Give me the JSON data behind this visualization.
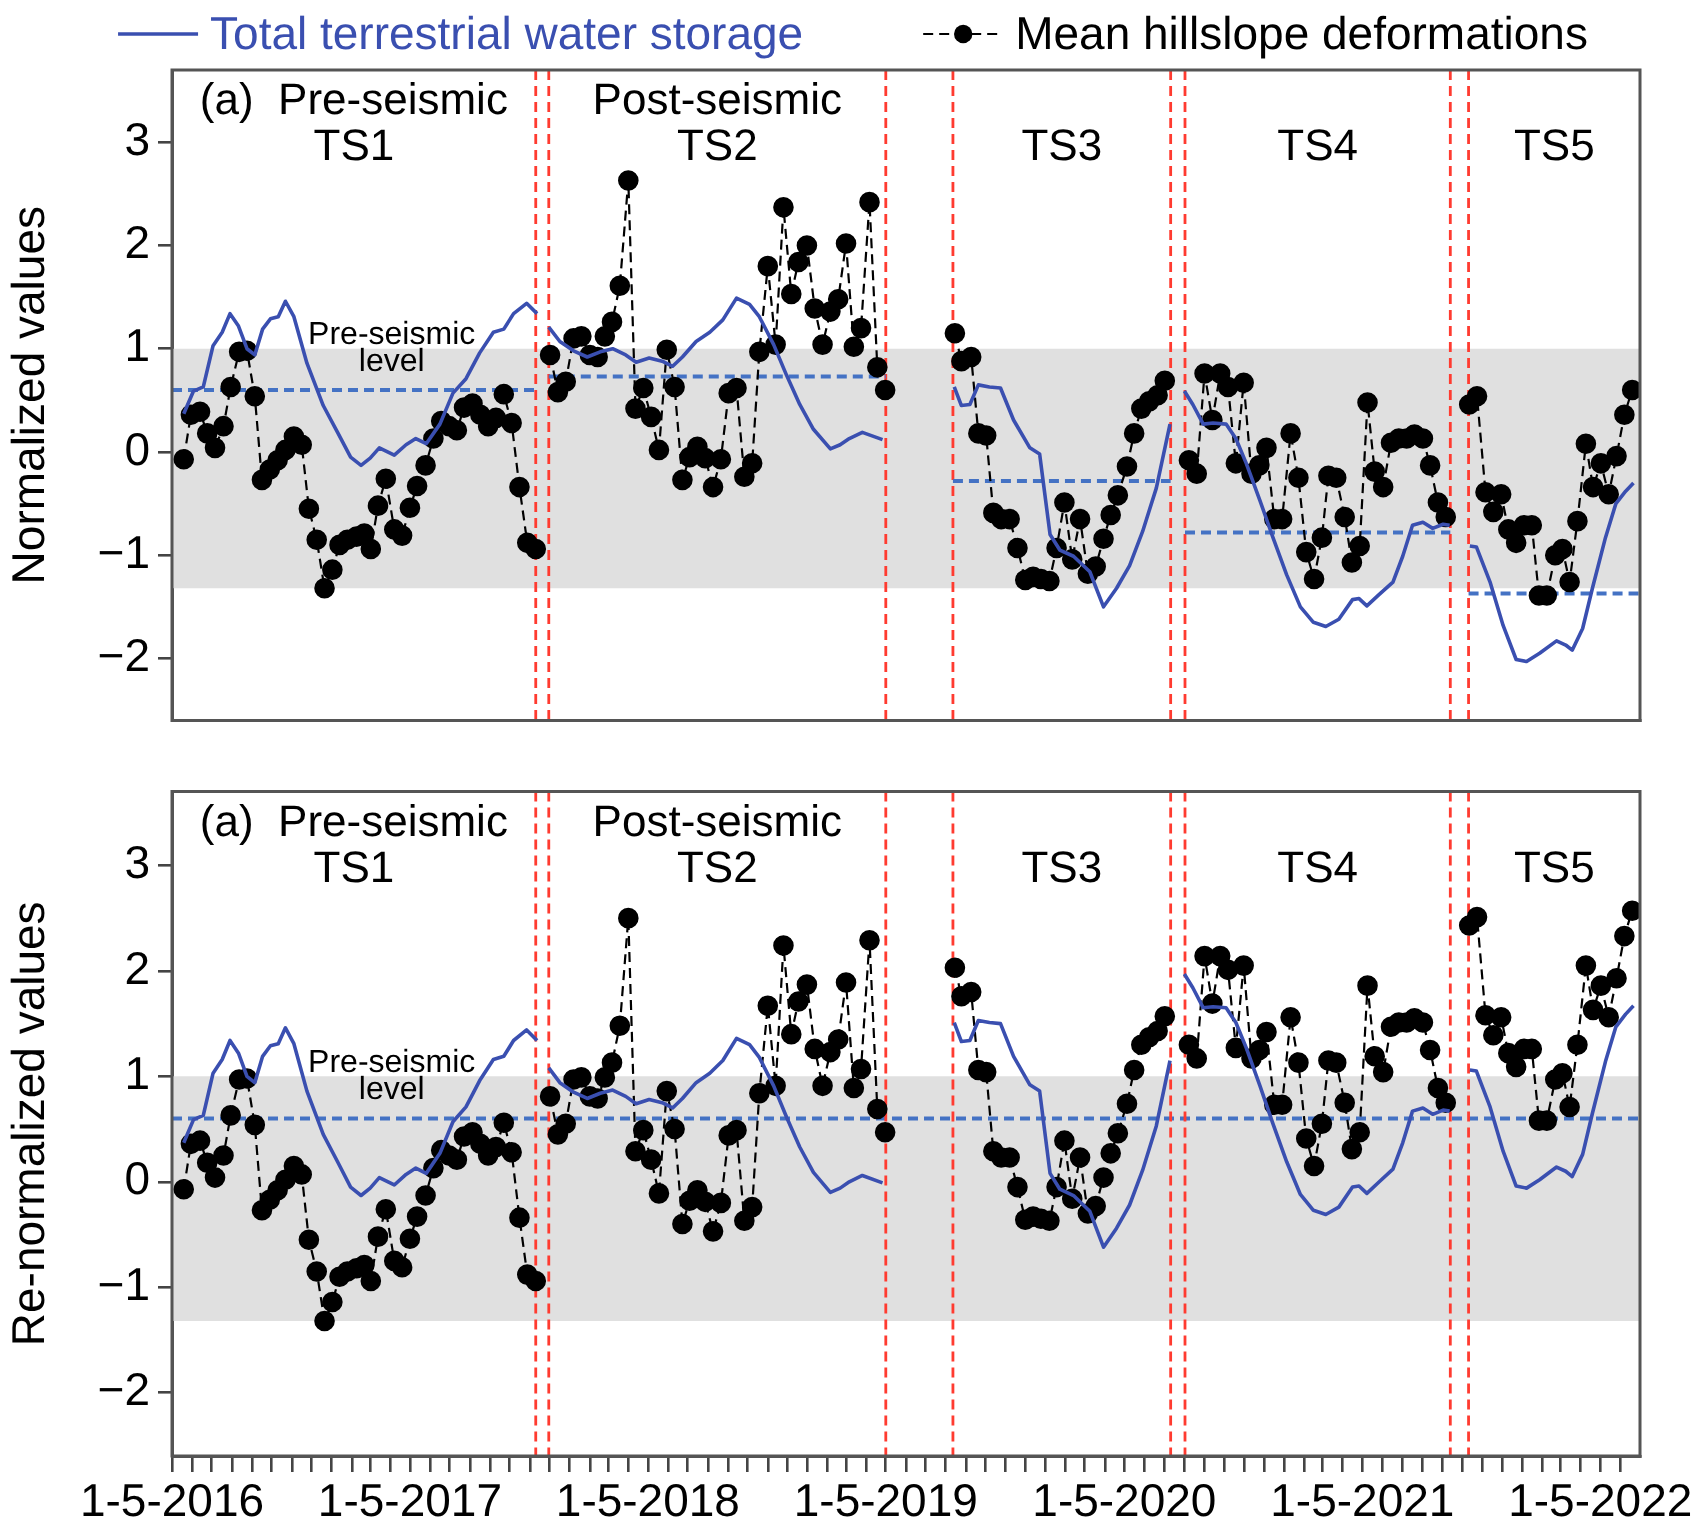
{
  "chart_data": [
    {
      "type": "line",
      "ylabel": "Normalized values",
      "legend": "top",
      "tick_labels": "y",
      "xlim": [
        "2016-05-01",
        "2022-07-01"
      ],
      "ylim": [
        -2.6,
        3.7
      ],
      "yticks": [
        -2,
        -1,
        0,
        1,
        2,
        3
      ],
      "bands": [
        {
          "axis": "y",
          "from": -1.32,
          "to": 1.0,
          "color": "#e0e0e0"
        }
      ],
      "ref_lines": [
        {
          "axis": "x",
          "value": "2017-11-10",
          "color": "#ff3b30",
          "line_style": "dashed"
        },
        {
          "axis": "x",
          "value": "2017-11-30",
          "color": "#ff3b30",
          "line_style": "dashed"
        },
        {
          "axis": "x",
          "value": "2019-05-01",
          "color": "#ff3b30",
          "line_style": "dashed"
        },
        {
          "axis": "x",
          "value": "2019-08-12",
          "color": "#ff3b30",
          "line_style": "dashed"
        },
        {
          "axis": "x",
          "value": "2020-07-11",
          "color": "#ff3b30",
          "line_style": "dashed"
        },
        {
          "axis": "x",
          "value": "2020-08-02",
          "color": "#ff3b30",
          "line_style": "dashed"
        },
        {
          "axis": "x",
          "value": "2021-09-13",
          "color": "#ff3b30",
          "line_style": "dashed"
        },
        {
          "axis": "x",
          "value": "2021-10-11",
          "color": "#ff3b30",
          "line_style": "dashed"
        }
      ],
      "annotations": [
        "(a)  Pre-seismic\nTS1",
        "Post-seismic\nTS2",
        "TS3",
        "TS4",
        "TS5",
        {
          "text": "Pre-seismic\nlevel",
          "x": "2017-04-03",
          "y": 1.0
        }
      ],
      "series": [
        {
          "name": "Total terrestrial water storage",
          "type": "line",
          "color": "#3a4fb0",
          "marker": "none",
          "line_style": "solid",
          "x": [
            "2016-05-19",
            "2016-06-03",
            "2016-06-18",
            "2016-07-03",
            "2016-07-17",
            "2016-07-29",
            "2016-08-11",
            "2016-08-24",
            "2016-09-05",
            "2016-09-17",
            "2016-09-29",
            "2016-10-11",
            "2016-10-22",
            "2016-11-04",
            "2016-11-24",
            "2016-12-19",
            "2017-01-10",
            "2017-01-30",
            "2017-02-15",
            "2017-03-01",
            "2017-03-15",
            "2017-04-07",
            "2017-04-25",
            "2017-05-10",
            "2017-05-26",
            "2017-06-16",
            "2017-07-06",
            "2017-07-26",
            "2017-08-16",
            "2017-09-06",
            "2017-09-22",
            "2017-10-07",
            "2017-10-27",
            "2017-11-12",
            "2017-11-20",
            "2017-11-30",
            "2017-12-17",
            "2018-01-07",
            "2018-01-28",
            "2018-02-17",
            "2018-03-08",
            "2018-03-28",
            "2018-04-13",
            "2018-05-03",
            "2018-05-23",
            "2018-06-08",
            "2018-06-23",
            "2018-07-14",
            "2018-08-04",
            "2018-08-24",
            "2018-09-14",
            "2018-10-04",
            "2018-10-19",
            "2018-11-10",
            "2018-11-30",
            "2018-12-20",
            "2019-01-10",
            "2019-02-05",
            "2019-02-20",
            "2019-03-06",
            "2019-03-26",
            "2019-04-26",
            "2019-06-20",
            "2019-08-14",
            "2019-08-25",
            "2019-09-07",
            "2019-09-20",
            "2019-10-07",
            "2019-10-24",
            "2019-11-13",
            "2019-12-08",
            "2019-12-23",
            "2020-01-08",
            "2020-01-23",
            "2020-02-13",
            "2020-03-09",
            "2020-03-30",
            "2020-04-19",
            "2020-05-09",
            "2020-05-29",
            "2020-06-19",
            "2020-07-10",
            "2020-07-20",
            "2020-08-01",
            "2020-08-14",
            "2020-08-30",
            "2020-09-14",
            "2020-10-04",
            "2020-10-19",
            "2020-11-04",
            "2020-11-25",
            "2020-12-15",
            "2021-01-05",
            "2021-01-26",
            "2021-02-15",
            "2021-03-06",
            "2021-03-26",
            "2021-04-16",
            "2021-04-26",
            "2021-05-08",
            "2021-05-27",
            "2021-06-17",
            "2021-07-02",
            "2021-07-17",
            "2021-08-02",
            "2021-08-17",
            "2021-09-02",
            "2021-09-12",
            "2021-09-25",
            "2021-10-13",
            "2021-10-23",
            "2021-11-13",
            "2021-12-03",
            "2021-12-23",
            "2022-01-08",
            "2022-01-28",
            "2022-02-23",
            "2022-03-09",
            "2022-03-19",
            "2022-04-04",
            "2022-04-19",
            "2022-05-09",
            "2022-05-25",
            "2022-06-09",
            "2022-06-21"
          ],
          "values": [
            0.37,
            0.59,
            0.63,
            1.03,
            1.16,
            1.34,
            1.22,
            1.0,
            0.94,
            1.19,
            1.29,
            1.31,
            1.46,
            1.31,
            0.86,
            0.45,
            0.19,
            -0.05,
            -0.13,
            -0.06,
            0.04,
            -0.03,
            0.07,
            0.13,
            0.08,
            0.27,
            0.57,
            0.71,
            0.96,
            1.16,
            1.19,
            1.34,
            1.44,
            1.34,
            null,
            1.21,
            1.07,
            0.98,
            0.92,
            0.97,
            1.0,
            0.94,
            0.87,
            0.91,
            0.88,
            0.83,
            0.92,
            1.07,
            1.16,
            1.28,
            1.49,
            1.43,
            1.31,
            1.04,
            0.74,
            0.46,
            0.22,
            0.03,
            0.07,
            0.13,
            0.19,
            0.12,
            null,
            0.63,
            0.45,
            0.46,
            0.65,
            0.63,
            0.62,
            0.31,
            0.04,
            -0.02,
            -0.8,
            -0.95,
            -1.01,
            -1.16,
            -1.5,
            -1.32,
            -1.1,
            -0.77,
            -0.35,
            0.27,
            null,
            0.59,
            0.46,
            0.27,
            0.28,
            0.27,
            0.13,
            -0.11,
            -0.47,
            -0.83,
            -1.19,
            -1.5,
            -1.65,
            -1.69,
            -1.62,
            -1.43,
            -1.42,
            -1.49,
            -1.38,
            -1.26,
            -1.01,
            -0.71,
            -0.68,
            -0.74,
            -0.7,
            -0.71,
            null,
            -0.91,
            -0.92,
            -1.26,
            -1.68,
            -2.01,
            -2.03,
            -1.95,
            -1.83,
            -1.87,
            -1.92,
            -1.71,
            -1.32,
            -0.83,
            -0.5,
            -0.38,
            -0.3
          ]
        },
        {
          "name": "Mean hillslope deformations",
          "type": "line",
          "color": "#000000",
          "marker": "circle",
          "line_style": "dashed",
          "x": [
            "2016-05-19",
            "2016-05-30",
            "2016-06-13",
            "2016-06-24",
            "2016-07-06",
            "2016-07-19",
            "2016-07-30",
            "2016-08-12",
            "2016-08-24",
            "2016-09-05",
            "2016-09-16",
            "2016-09-28",
            "2016-10-10",
            "2016-10-22",
            "2016-11-04",
            "2016-11-16",
            "2016-11-27",
            "2016-12-09",
            "2016-12-21",
            "2017-01-02",
            "2017-01-13",
            "2017-01-25",
            "2017-02-08",
            "2017-02-20",
            "2017-03-02",
            "2017-03-13",
            "2017-03-25",
            "2017-04-07",
            "2017-04-19",
            "2017-05-01",
            "2017-05-12",
            "2017-05-25",
            "2017-06-06",
            "2017-06-18",
            "2017-06-30",
            "2017-07-12",
            "2017-07-23",
            "2017-08-05",
            "2017-08-17",
            "2017-08-29",
            "2017-09-10",
            "2017-09-22",
            "2017-10-04",
            "2017-10-16",
            "2017-10-28",
            "2017-11-10",
            "2017-11-20",
            "2017-12-02",
            "2017-12-14",
            "2017-12-26",
            "2018-01-07",
            "2018-01-19",
            "2018-02-01",
            "2018-02-13",
            "2018-02-24",
            "2018-03-07",
            "2018-03-19",
            "2018-04-01",
            "2018-04-12",
            "2018-04-24",
            "2018-05-06",
            "2018-05-18",
            "2018-05-30",
            "2018-06-11",
            "2018-06-23",
            "2018-07-04",
            "2018-07-16",
            "2018-07-28",
            "2018-08-09",
            "2018-08-21",
            "2018-09-02",
            "2018-09-14",
            "2018-09-26",
            "2018-10-08",
            "2018-10-19",
            "2018-11-01",
            "2018-11-13",
            "2018-11-25",
            "2018-12-07",
            "2018-12-18",
            "2018-12-31",
            "2019-01-12",
            "2019-01-24",
            "2019-02-05",
            "2019-02-17",
            "2019-03-01",
            "2019-03-13",
            "2019-03-24",
            "2019-04-06",
            "2019-04-18",
            "2019-04-30",
            "2019-06-20",
            "2019-08-15",
            "2019-08-25",
            "2019-09-09",
            "2019-09-20",
            "2019-10-02",
            "2019-10-13",
            "2019-10-25",
            "2019-11-07",
            "2019-11-19",
            "2019-12-01",
            "2019-12-13",
            "2019-12-25",
            "2020-01-07",
            "2020-01-18",
            "2020-01-30",
            "2020-02-11",
            "2020-02-23",
            "2020-03-06",
            "2020-03-18",
            "2020-03-30",
            "2020-04-10",
            "2020-04-21",
            "2020-05-05",
            "2020-05-16",
            "2020-05-27",
            "2020-06-08",
            "2020-06-21",
            "2020-07-02",
            "2020-07-20",
            "2020-08-08",
            "2020-08-20",
            "2020-09-01",
            "2020-09-13",
            "2020-09-25",
            "2020-10-07",
            "2020-10-19",
            "2020-10-31",
            "2020-11-12",
            "2020-11-24",
            "2020-12-05",
            "2020-12-17",
            "2020-12-29",
            "2021-01-11",
            "2021-01-23",
            "2021-02-04",
            "2021-02-16",
            "2021-02-28",
            "2021-03-10",
            "2021-03-22",
            "2021-04-04",
            "2021-04-15",
            "2021-04-27",
            "2021-05-09",
            "2021-05-20",
            "2021-06-02",
            "2021-06-14",
            "2021-06-26",
            "2021-07-08",
            "2021-07-20",
            "2021-08-02",
            "2021-08-13",
            "2021-08-25",
            "2021-09-06",
            "2021-09-25",
            "2021-10-12",
            "2021-10-24",
            "2021-11-06",
            "2021-11-18",
            "2021-11-30",
            "2021-12-11",
            "2021-12-23",
            "2022-01-04",
            "2022-01-16",
            "2022-01-27",
            "2022-02-08",
            "2022-02-21",
            "2022-03-04",
            "2022-03-15",
            "2022-03-27",
            "2022-04-09",
            "2022-04-20",
            "2022-05-02",
            "2022-05-14",
            "2022-05-26",
            "2022-06-07",
            "2022-06-19"
          ],
          "values": [
            -0.07,
            0.36,
            0.39,
            0.18,
            0.04,
            0.25,
            0.63,
            0.97,
            0.98,
            0.54,
            -0.27,
            -0.17,
            -0.08,
            0.02,
            0.15,
            0.07,
            -0.55,
            -0.85,
            -1.32,
            -1.14,
            -0.9,
            -0.85,
            -0.82,
            -0.79,
            -0.94,
            -0.52,
            -0.26,
            -0.75,
            -0.81,
            -0.54,
            -0.33,
            -0.13,
            0.13,
            0.3,
            0.25,
            0.21,
            0.43,
            0.47,
            0.36,
            0.25,
            0.33,
            0.56,
            0.28,
            -0.34,
            -0.88,
            -0.94,
            null,
            0.94,
            0.58,
            0.68,
            1.1,
            1.12,
            0.94,
            0.92,
            1.12,
            1.26,
            1.61,
            2.63,
            0.42,
            0.62,
            0.34,
            0.02,
            0.99,
            0.63,
            -0.27,
            -0.05,
            0.05,
            -0.06,
            -0.34,
            -0.07,
            0.57,
            0.62,
            -0.24,
            -0.11,
            0.97,
            1.8,
            1.04,
            2.37,
            1.53,
            1.84,
            2.0,
            1.39,
            1.04,
            1.36,
            1.48,
            2.02,
            1.02,
            1.2,
            2.42,
            0.82,
            0.6,
            null,
            1.15,
            0.88,
            0.92,
            0.18,
            0.16,
            -0.59,
            -0.65,
            -0.65,
            -0.93,
            -1.24,
            -1.21,
            -1.23,
            -1.25,
            -0.93,
            -0.49,
            -1.04,
            -0.65,
            -1.18,
            -1.11,
            -0.84,
            -0.61,
            -0.42,
            -0.14,
            0.18,
            0.42,
            0.49,
            0.55,
            0.69,
            null,
            -0.08,
            -0.21,
            0.76,
            0.31,
            0.76,
            0.63,
            -0.11,
            0.67,
            -0.21,
            -0.13,
            0.04,
            -0.65,
            -0.65,
            0.18,
            -0.25,
            -0.97,
            -1.23,
            -0.83,
            -0.23,
            -0.25,
            -0.63,
            -1.07,
            -0.91,
            0.48,
            -0.19,
            -0.34,
            0.09,
            0.13,
            0.13,
            0.17,
            0.13,
            -0.13,
            -0.49,
            -0.63,
            null,
            0.46,
            0.54,
            -0.39,
            -0.58,
            -0.41,
            -0.75,
            -0.88,
            -0.71,
            -0.71,
            -1.39,
            -1.39,
            -1.0,
            -0.94,
            -1.26,
            -0.67,
            0.08,
            -0.34,
            -0.11,
            -0.41,
            -0.04,
            0.36,
            0.6
          ]
        },
        {
          "type": "line",
          "color": "#4472c4",
          "marker": "none",
          "line_style": "dashed",
          "x": [
            "2016-05-01",
            "2017-11-10"
          ],
          "values": [
            0.6,
            0.6
          ]
        },
        {
          "type": "line",
          "color": "#4472c4",
          "marker": "none",
          "line_style": "dashed",
          "x": [
            "2017-11-30",
            "2019-05-01"
          ],
          "values": [
            0.73,
            0.73
          ]
        },
        {
          "type": "line",
          "color": "#4472c4",
          "marker": "none",
          "line_style": "dashed",
          "x": [
            "2019-08-12",
            "2020-07-11"
          ],
          "values": [
            -0.28,
            -0.28
          ]
        },
        {
          "type": "line",
          "color": "#4472c4",
          "marker": "none",
          "line_style": "dashed",
          "x": [
            "2020-08-02",
            "2021-09-13"
          ],
          "values": [
            -0.78,
            -0.78
          ]
        },
        {
          "type": "line",
          "color": "#4472c4",
          "marker": "none",
          "line_style": "dashed",
          "x": [
            "2021-10-11",
            "2022-07-01"
          ],
          "values": [
            -1.37,
            -1.37
          ]
        }
      ]
    },
    {
      "type": "line",
      "ylabel": "Re-normalized values",
      "xlim": [
        "2016-05-01",
        "2022-07-01"
      ],
      "ylim": [
        -2.6,
        3.7
      ],
      "xticks": [
        {
          "value": "2016-05-01",
          "label": "1-5-2016"
        },
        {
          "value": "2016-06-01",
          "label": null
        },
        {
          "value": "2016-07-01",
          "label": null
        },
        {
          "value": "2016-08-01",
          "label": null
        },
        {
          "value": "2016-09-01",
          "label": null
        },
        {
          "value": "2016-10-01",
          "label": null
        },
        {
          "value": "2016-11-01",
          "label": null
        },
        {
          "value": "2016-12-01",
          "label": null
        },
        {
          "value": "2017-01-01",
          "label": null
        },
        {
          "value": "2017-02-01",
          "label": null
        },
        {
          "value": "2017-03-01",
          "label": null
        },
        {
          "value": "2017-04-01",
          "label": null
        },
        {
          "value": "2017-05-01",
          "label": "1-5-2017"
        },
        {
          "value": "2017-06-01",
          "label": null
        },
        {
          "value": "2017-07-01",
          "label": null
        },
        {
          "value": "2017-08-01",
          "label": null
        },
        {
          "value": "2017-09-01",
          "label": null
        },
        {
          "value": "2017-10-01",
          "label": null
        },
        {
          "value": "2017-11-01",
          "label": null
        },
        {
          "value": "2017-12-01",
          "label": null
        },
        {
          "value": "2018-01-01",
          "label": null
        },
        {
          "value": "2018-02-01",
          "label": null
        },
        {
          "value": "2018-03-01",
          "label": null
        },
        {
          "value": "2018-04-01",
          "label": null
        },
        {
          "value": "2018-05-01",
          "label": "1-5-2018"
        },
        {
          "value": "2018-06-01",
          "label": null
        },
        {
          "value": "2018-07-01",
          "label": null
        },
        {
          "value": "2018-08-01",
          "label": null
        },
        {
          "value": "2018-09-01",
          "label": null
        },
        {
          "value": "2018-10-01",
          "label": null
        },
        {
          "value": "2018-11-01",
          "label": null
        },
        {
          "value": "2018-12-01",
          "label": null
        },
        {
          "value": "2019-01-01",
          "label": null
        },
        {
          "value": "2019-02-01",
          "label": null
        },
        {
          "value": "2019-03-01",
          "label": null
        },
        {
          "value": "2019-04-01",
          "label": null
        },
        {
          "value": "2019-05-01",
          "label": "1-5-2019"
        },
        {
          "value": "2019-06-01",
          "label": null
        },
        {
          "value": "2019-07-01",
          "label": null
        },
        {
          "value": "2019-08-01",
          "label": null
        },
        {
          "value": "2019-09-01",
          "label": null
        },
        {
          "value": "2019-10-01",
          "label": null
        },
        {
          "value": "2019-11-01",
          "label": null
        },
        {
          "value": "2019-12-01",
          "label": null
        },
        {
          "value": "2020-01-01",
          "label": null
        },
        {
          "value": "2020-02-01",
          "label": null
        },
        {
          "value": "2020-03-01",
          "label": null
        },
        {
          "value": "2020-04-01",
          "label": null
        },
        {
          "value": "2020-05-01",
          "label": "1-5-2020"
        },
        {
          "value": "2020-06-01",
          "label": null
        },
        {
          "value": "2020-07-01",
          "label": null
        },
        {
          "value": "2020-08-01",
          "label": null
        },
        {
          "value": "2020-09-01",
          "label": null
        },
        {
          "value": "2020-10-01",
          "label": null
        },
        {
          "value": "2020-11-01",
          "label": null
        },
        {
          "value": "2020-12-01",
          "label": null
        },
        {
          "value": "2021-01-01",
          "label": null
        },
        {
          "value": "2021-02-01",
          "label": null
        },
        {
          "value": "2021-03-01",
          "label": null
        },
        {
          "value": "2021-04-01",
          "label": null
        },
        {
          "value": "2021-05-01",
          "label": "1-5-2021"
        },
        {
          "value": "2021-06-01",
          "label": null
        },
        {
          "value": "2021-07-01",
          "label": null
        },
        {
          "value": "2021-08-01",
          "label": null
        },
        {
          "value": "2021-09-01",
          "label": null
        },
        {
          "value": "2021-10-01",
          "label": null
        },
        {
          "value": "2021-11-01",
          "label": null
        },
        {
          "value": "2021-12-01",
          "label": null
        },
        {
          "value": "2022-01-01",
          "label": null
        },
        {
          "value": "2022-02-01",
          "label": null
        },
        {
          "value": "2022-03-01",
          "label": null
        },
        {
          "value": "2022-04-01",
          "label": null
        },
        {
          "value": "2022-05-01",
          "label": "1-5-2022"
        },
        {
          "value": "2022-06-01",
          "label": null
        }
      ],
      "yticks": [
        -2,
        -1,
        0,
        1,
        2,
        3
      ],
      "bands": [
        {
          "axis": "y",
          "from": -1.32,
          "to": 1.0,
          "color": "#e0e0e0"
        }
      ],
      "ref_lines": [
        {
          "axis": "y",
          "value": 0.6,
          "color": "#4472c4",
          "line_style": "dashed"
        },
        {
          "axis": "x",
          "value": "2017-11-10",
          "color": "#ff3b30",
          "line_style": "dashed"
        },
        {
          "axis": "x",
          "value": "2017-11-30",
          "color": "#ff3b30",
          "line_style": "dashed"
        },
        {
          "axis": "x",
          "value": "2019-05-01",
          "color": "#ff3b30",
          "line_style": "dashed"
        },
        {
          "axis": "x",
          "value": "2019-08-12",
          "color": "#ff3b30",
          "line_style": "dashed"
        },
        {
          "axis": "x",
          "value": "2020-07-11",
          "color": "#ff3b30",
          "line_style": "dashed"
        },
        {
          "axis": "x",
          "value": "2020-08-02",
          "color": "#ff3b30",
          "line_style": "dashed"
        },
        {
          "axis": "x",
          "value": "2021-09-13",
          "color": "#ff3b30",
          "line_style": "dashed"
        },
        {
          "axis": "x",
          "value": "2021-10-11",
          "color": "#ff3b30",
          "line_style": "dashed"
        }
      ],
      "annotations": [
        "(a)  Pre-seismic\nTS1",
        "Post-seismic\nTS2",
        "TS3",
        "TS4",
        "TS5",
        {
          "text": "Pre-seismic\nlevel",
          "x": "2017-04-03",
          "y": 1.0
        }
      ],
      "series": [
        {
          "type": "line",
          "color": "#3a4fb0",
          "marker": "none",
          "line_style": "solid",
          "x": [
            "2016-05-19",
            "2016-06-03",
            "2016-06-18",
            "2016-07-03",
            "2016-07-17",
            "2016-07-29",
            "2016-08-11",
            "2016-08-24",
            "2016-09-05",
            "2016-09-17",
            "2016-09-29",
            "2016-10-11",
            "2016-10-22",
            "2016-11-04",
            "2016-11-24",
            "2016-12-19",
            "2017-01-10",
            "2017-01-30",
            "2017-02-15",
            "2017-03-01",
            "2017-03-15",
            "2017-04-07",
            "2017-04-25",
            "2017-05-10",
            "2017-05-26",
            "2017-06-16",
            "2017-07-06",
            "2017-07-26",
            "2017-08-16",
            "2017-09-06",
            "2017-09-22",
            "2017-10-07",
            "2017-10-27",
            "2017-11-12",
            "2017-11-20",
            "2017-11-30",
            "2017-12-17",
            "2018-01-07",
            "2018-01-28",
            "2018-02-17",
            "2018-03-08",
            "2018-03-28",
            "2018-04-13",
            "2018-05-03",
            "2018-05-23",
            "2018-06-08",
            "2018-06-23",
            "2018-07-14",
            "2018-08-04",
            "2018-08-24",
            "2018-09-14",
            "2018-10-04",
            "2018-10-19",
            "2018-11-10",
            "2018-11-30",
            "2018-12-20",
            "2019-01-10",
            "2019-02-05",
            "2019-02-20",
            "2019-03-06",
            "2019-03-26",
            "2019-04-26",
            "2019-06-20",
            "2019-08-14",
            "2019-08-25",
            "2019-09-07",
            "2019-09-20",
            "2019-10-07",
            "2019-10-24",
            "2019-11-13",
            "2019-12-08",
            "2019-12-23",
            "2020-01-08",
            "2020-01-23",
            "2020-02-13",
            "2020-03-09",
            "2020-03-30",
            "2020-04-19",
            "2020-05-09",
            "2020-05-29",
            "2020-06-19",
            "2020-07-10",
            "2020-07-20",
            "2020-08-01",
            "2020-08-14",
            "2020-08-30",
            "2020-09-14",
            "2020-10-04",
            "2020-10-19",
            "2020-11-04",
            "2020-11-25",
            "2020-12-15",
            "2021-01-05",
            "2021-01-26",
            "2021-02-15",
            "2021-03-06",
            "2021-03-26",
            "2021-04-16",
            "2021-04-26",
            "2021-05-08",
            "2021-05-27",
            "2021-06-17",
            "2021-07-02",
            "2021-07-17",
            "2021-08-02",
            "2021-08-17",
            "2021-09-02",
            "2021-09-12",
            "2021-09-25",
            "2021-10-13",
            "2021-10-23",
            "2021-11-13",
            "2021-12-03",
            "2021-12-23",
            "2022-01-08",
            "2022-01-28",
            "2022-02-23",
            "2022-03-09",
            "2022-03-19",
            "2022-04-04",
            "2022-04-19",
            "2022-05-09",
            "2022-05-25",
            "2022-06-09",
            "2022-06-21"
          ],
          "values": [
            0.37,
            0.59,
            0.63,
            1.03,
            1.16,
            1.34,
            1.22,
            1.0,
            0.94,
            1.19,
            1.29,
            1.31,
            1.46,
            1.31,
            0.86,
            0.45,
            0.19,
            -0.05,
            -0.13,
            -0.06,
            0.04,
            -0.03,
            0.07,
            0.13,
            0.08,
            0.27,
            0.57,
            0.71,
            0.96,
            1.16,
            1.19,
            1.34,
            1.44,
            1.34,
            null,
            1.08,
            0.94,
            0.85,
            0.79,
            0.84,
            0.87,
            0.81,
            0.74,
            0.78,
            0.75,
            0.7,
            0.79,
            0.94,
            1.03,
            1.15,
            1.36,
            1.3,
            1.18,
            0.91,
            0.61,
            0.33,
            0.09,
            -0.1,
            -0.06,
            0.0,
            0.06,
            -0.01,
            null,
            1.51,
            1.33,
            1.34,
            1.53,
            1.51,
            1.5,
            1.19,
            0.92,
            0.86,
            0.08,
            -0.07,
            -0.13,
            -0.28,
            -0.62,
            -0.44,
            -0.22,
            0.11,
            0.53,
            1.15,
            null,
            1.97,
            1.84,
            1.65,
            1.66,
            1.65,
            1.51,
            1.27,
            0.91,
            0.55,
            0.19,
            -0.12,
            -0.27,
            -0.31,
            -0.24,
            -0.05,
            -0.04,
            -0.11,
            0.0,
            0.12,
            0.37,
            0.67,
            0.7,
            0.64,
            0.68,
            0.67,
            null,
            1.06,
            1.05,
            0.71,
            0.29,
            -0.04,
            -0.06,
            0.02,
            0.14,
            0.1,
            0.05,
            0.26,
            0.65,
            1.14,
            1.47,
            1.59,
            1.67
          ]
        },
        {
          "type": "line",
          "color": "#000000",
          "marker": "circle",
          "line_style": "dashed",
          "x": [
            "2016-05-19",
            "2016-05-30",
            "2016-06-13",
            "2016-06-24",
            "2016-07-06",
            "2016-07-19",
            "2016-07-30",
            "2016-08-12",
            "2016-08-24",
            "2016-09-05",
            "2016-09-16",
            "2016-09-28",
            "2016-10-10",
            "2016-10-22",
            "2016-11-04",
            "2016-11-16",
            "2016-11-27",
            "2016-12-09",
            "2016-12-21",
            "2017-01-02",
            "2017-01-13",
            "2017-01-25",
            "2017-02-08",
            "2017-02-20",
            "2017-03-02",
            "2017-03-13",
            "2017-03-25",
            "2017-04-07",
            "2017-04-19",
            "2017-05-01",
            "2017-05-12",
            "2017-05-25",
            "2017-06-06",
            "2017-06-18",
            "2017-06-30",
            "2017-07-12",
            "2017-07-23",
            "2017-08-05",
            "2017-08-17",
            "2017-08-29",
            "2017-09-10",
            "2017-09-22",
            "2017-10-04",
            "2017-10-16",
            "2017-10-28",
            "2017-11-10",
            "2017-11-20",
            "2017-12-02",
            "2017-12-14",
            "2017-12-26",
            "2018-01-07",
            "2018-01-19",
            "2018-02-01",
            "2018-02-13",
            "2018-02-24",
            "2018-03-07",
            "2018-03-19",
            "2018-04-01",
            "2018-04-12",
            "2018-04-24",
            "2018-05-06",
            "2018-05-18",
            "2018-05-30",
            "2018-06-11",
            "2018-06-23",
            "2018-07-04",
            "2018-07-16",
            "2018-07-28",
            "2018-08-09",
            "2018-08-21",
            "2018-09-02",
            "2018-09-14",
            "2018-09-26",
            "2018-10-08",
            "2018-10-19",
            "2018-11-01",
            "2018-11-13",
            "2018-11-25",
            "2018-12-07",
            "2018-12-18",
            "2018-12-31",
            "2019-01-12",
            "2019-01-24",
            "2019-02-05",
            "2019-02-17",
            "2019-03-01",
            "2019-03-13",
            "2019-03-24",
            "2019-04-06",
            "2019-04-18",
            "2019-04-30",
            "2019-06-20",
            "2019-08-15",
            "2019-08-25",
            "2019-09-09",
            "2019-09-20",
            "2019-10-02",
            "2019-10-13",
            "2019-10-25",
            "2019-11-07",
            "2019-11-19",
            "2019-12-01",
            "2019-12-13",
            "2019-12-25",
            "2020-01-07",
            "2020-01-18",
            "2020-01-30",
            "2020-02-11",
            "2020-02-23",
            "2020-03-06",
            "2020-03-18",
            "2020-03-30",
            "2020-04-10",
            "2020-04-21",
            "2020-05-05",
            "2020-05-16",
            "2020-05-27",
            "2020-06-08",
            "2020-06-21",
            "2020-07-02",
            "2020-07-20",
            "2020-08-08",
            "2020-08-20",
            "2020-09-01",
            "2020-09-13",
            "2020-09-25",
            "2020-10-07",
            "2020-10-19",
            "2020-10-31",
            "2020-11-12",
            "2020-11-24",
            "2020-12-05",
            "2020-12-17",
            "2020-12-29",
            "2021-01-11",
            "2021-01-23",
            "2021-02-04",
            "2021-02-16",
            "2021-02-28",
            "2021-03-10",
            "2021-03-22",
            "2021-04-04",
            "2021-04-15",
            "2021-04-27",
            "2021-05-09",
            "2021-05-20",
            "2021-06-02",
            "2021-06-14",
            "2021-06-26",
            "2021-07-08",
            "2021-07-20",
            "2021-08-02",
            "2021-08-13",
            "2021-08-25",
            "2021-09-06",
            "2021-09-25",
            "2021-10-12",
            "2021-10-24",
            "2021-11-06",
            "2021-11-18",
            "2021-11-30",
            "2021-12-11",
            "2021-12-23",
            "2022-01-04",
            "2022-01-16",
            "2022-01-27",
            "2022-02-08",
            "2022-02-21",
            "2022-03-04",
            "2022-03-15",
            "2022-03-27",
            "2022-04-09",
            "2022-04-20",
            "2022-05-02",
            "2022-05-14",
            "2022-05-26",
            "2022-06-07",
            "2022-06-19"
          ],
          "values": [
            -0.07,
            0.36,
            0.39,
            0.18,
            0.04,
            0.25,
            0.63,
            0.97,
            0.98,
            0.54,
            -0.27,
            -0.17,
            -0.08,
            0.02,
            0.15,
            0.07,
            -0.55,
            -0.85,
            -1.32,
            -1.14,
            -0.9,
            -0.85,
            -0.82,
            -0.79,
            -0.94,
            -0.52,
            -0.26,
            -0.75,
            -0.81,
            -0.54,
            -0.33,
            -0.13,
            0.13,
            0.3,
            0.25,
            0.21,
            0.43,
            0.47,
            0.36,
            0.25,
            0.33,
            0.56,
            0.28,
            -0.34,
            -0.88,
            -0.94,
            null,
            0.81,
            0.45,
            0.55,
            0.97,
            0.99,
            0.81,
            0.79,
            0.99,
            1.13,
            1.48,
            2.5,
            0.29,
            0.49,
            0.21,
            -0.11,
            0.86,
            0.5,
            -0.4,
            -0.18,
            -0.08,
            -0.19,
            -0.47,
            -0.2,
            0.44,
            0.49,
            -0.37,
            -0.24,
            0.84,
            1.67,
            0.91,
            2.24,
            1.4,
            1.71,
            1.87,
            1.26,
            0.91,
            1.23,
            1.35,
            1.89,
            0.89,
            1.07,
            2.29,
            0.69,
            0.47,
            null,
            2.03,
            1.76,
            1.8,
            1.06,
            1.04,
            0.29,
            0.23,
            0.23,
            -0.05,
            -0.36,
            -0.33,
            -0.35,
            -0.37,
            -0.05,
            0.39,
            -0.16,
            0.23,
            -0.3,
            -0.23,
            0.04,
            0.27,
            0.46,
            0.74,
            1.06,
            1.3,
            1.37,
            1.43,
            1.57,
            null,
            1.3,
            1.17,
            2.14,
            1.69,
            2.14,
            2.01,
            1.27,
            2.05,
            1.17,
            1.25,
            1.42,
            0.73,
            0.73,
            1.56,
            1.13,
            0.41,
            0.15,
            0.55,
            1.15,
            1.13,
            0.75,
            0.31,
            0.47,
            1.86,
            1.19,
            1.04,
            1.47,
            1.51,
            1.51,
            1.55,
            1.51,
            1.25,
            0.89,
            0.75,
            null,
            2.43,
            2.51,
            1.58,
            1.39,
            1.56,
            1.22,
            1.09,
            1.26,
            1.26,
            0.58,
            0.58,
            0.97,
            1.03,
            0.71,
            1.3,
            2.05,
            1.63,
            1.86,
            1.56,
            1.93,
            2.33,
            2.57
          ]
        }
      ]
    }
  ]
}
